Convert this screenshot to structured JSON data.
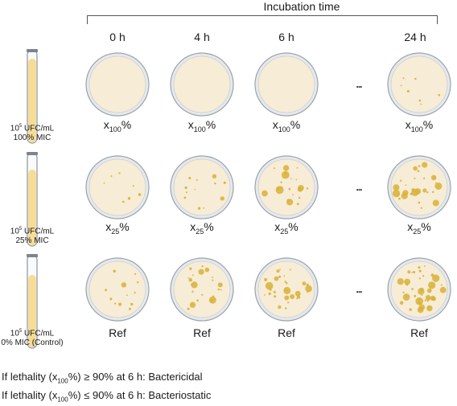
{
  "header": {
    "title": "Incubation time"
  },
  "columns": [
    {
      "label": "0 h"
    },
    {
      "label": "4 h"
    },
    {
      "label": "6 h"
    },
    {
      "label": "24 h"
    }
  ],
  "ellipsis": "...",
  "rows": [
    {
      "tube_line1": "10",
      "tube_exp": "5",
      "tube_unit": " UFC/mL",
      "tube_line2": "100% MIC",
      "label_base": "x",
      "label_sub": "100",
      "label_suffix": "%"
    },
    {
      "tube_line1": "10",
      "tube_exp": "5",
      "tube_unit": " UFC/mL",
      "tube_line2": "25% MIC",
      "label_base": "x",
      "label_sub": "25",
      "label_suffix": "%"
    },
    {
      "tube_line1": "10",
      "tube_exp": "5",
      "tube_unit": " UFC/mL",
      "tube_line2": "0% MIC (Control)",
      "label_ref": "Ref"
    }
  ],
  "rules": [
    {
      "pre": "If lethality (x",
      "sub": "100",
      "post": "%) ≥ 90% at 6 h: Bactericidal"
    },
    {
      "pre": "If lethality (x",
      "sub": "100",
      "post": "%) ≤ 90% at 6 h: Bacteriostatic"
    }
  ],
  "colors": {
    "agar": "#f7ecd6",
    "dish_rim": "#9aa3ad",
    "colony": "#d8b236",
    "tube_liquid": "#f6dc94"
  }
}
